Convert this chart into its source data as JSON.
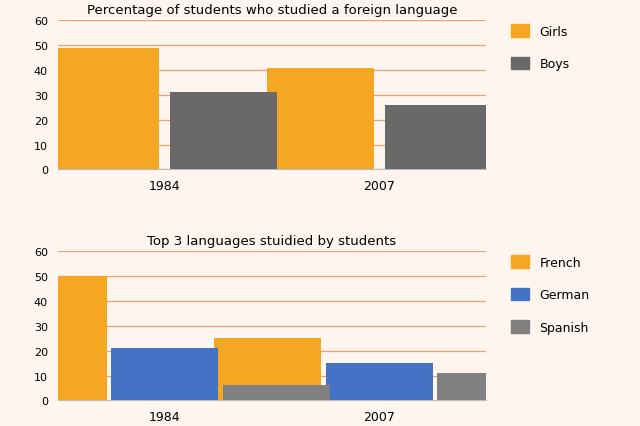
{
  "chart1": {
    "title": "Percentage of students who studied a foreign language",
    "years": [
      "1984",
      "2007"
    ],
    "girls": [
      49,
      41
    ],
    "boys": [
      31,
      26
    ],
    "colors": {
      "girls": "#F5A623",
      "boys": "#696969"
    },
    "legend_labels": [
      "Girls",
      "Boys"
    ],
    "ylim": [
      0,
      60
    ],
    "yticks": [
      0,
      10,
      20,
      30,
      40,
      50,
      60
    ]
  },
  "chart2": {
    "title": "Top 3 languages stuidied by students",
    "years": [
      "1984",
      "2007"
    ],
    "french": [
      50,
      25
    ],
    "german": [
      21,
      15
    ],
    "spanish": [
      6,
      11
    ],
    "colors": {
      "french": "#F5A623",
      "german": "#4472C4",
      "spanish": "#808080"
    },
    "legend_labels": [
      "French",
      "German",
      "Spanish"
    ],
    "ylim": [
      0,
      60
    ],
    "yticks": [
      0,
      10,
      20,
      30,
      40,
      50,
      60
    ]
  },
  "background_color": "#FEF5EE",
  "grid_color": "#F0A070",
  "bar_width": 0.25
}
